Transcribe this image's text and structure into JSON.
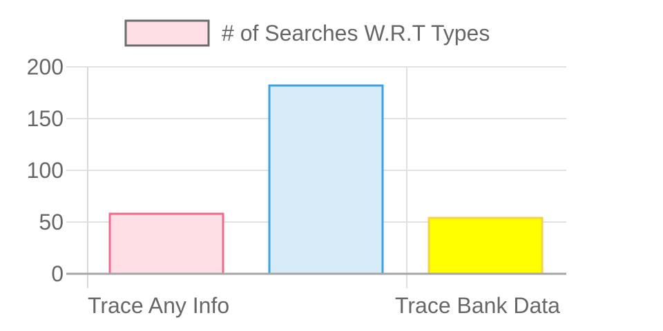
{
  "chart_data": {
    "type": "bar",
    "categories": [
      "Trace Any Info",
      "",
      "Trace Bank Data"
    ],
    "series": [
      {
        "name": "# of Searches W.R.T Types",
        "values": [
          58,
          182,
          54
        ],
        "fill_colors": [
          "#ffdfe6",
          "#d6eaf8",
          "#ffff00"
        ],
        "border_colors": [
          "#f06a8e",
          "#3ba2e0",
          "#f5d247"
        ]
      }
    ],
    "ylim": [
      0,
      200
    ],
    "yticks": [
      "200",
      "150",
      "100",
      "50",
      "0"
    ],
    "grid": true,
    "legend_position": "top-center",
    "legend_swatch_fill": "#ffdfe6",
    "legend_swatch_border": "#6b6b6b",
    "title": "",
    "xlabel": "",
    "ylabel": ""
  }
}
